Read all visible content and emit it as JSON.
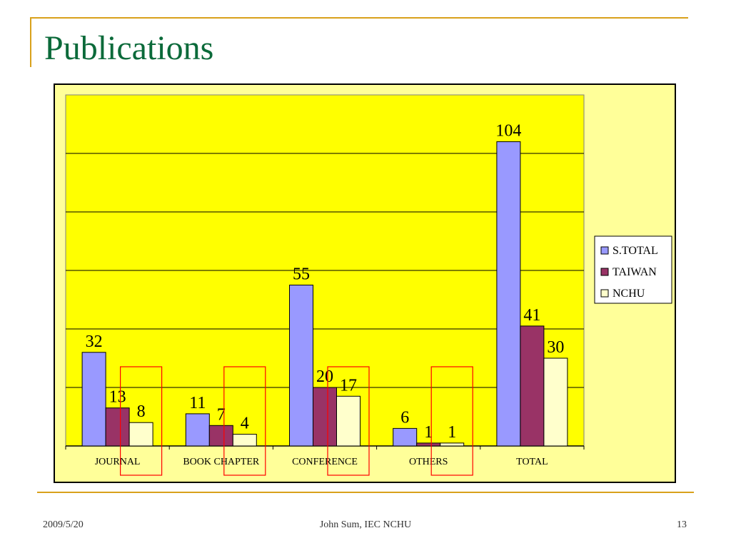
{
  "slide": {
    "title": "Publications"
  },
  "footer": {
    "date": "2009/5/20",
    "center": "John Sum, IEC NCHU",
    "page": "13"
  },
  "colors": {
    "plot_bg": "#FFFF00",
    "frame_bg": "#FFFF99",
    "highlight_box": "#FF0000",
    "accent_line": "#D9A11B",
    "title": "#0B6A3A"
  },
  "chart_data": {
    "type": "bar",
    "categories": [
      "JOURNAL",
      "BOOK CHAPTER",
      "CONFERENCE",
      "OTHERS",
      "TOTAL"
    ],
    "series": [
      {
        "name": "S.TOTAL",
        "values": [
          32,
          11,
          55,
          6,
          104
        ],
        "color": "#9999FF"
      },
      {
        "name": "TAIWAN",
        "values": [
          13,
          7,
          20,
          1,
          41
        ],
        "color": "#993366"
      },
      {
        "name": "NCHU",
        "values": [
          8,
          4,
          17,
          1,
          30
        ],
        "color": "#FFFFCC"
      }
    ],
    "ylim": [
      0,
      120
    ],
    "grid": true,
    "legend_position": "right",
    "data_labels": true,
    "highlighted_series": "NCHU",
    "highlighted_categories": [
      "JOURNAL",
      "BOOK CHAPTER",
      "CONFERENCE",
      "OTHERS"
    ]
  }
}
